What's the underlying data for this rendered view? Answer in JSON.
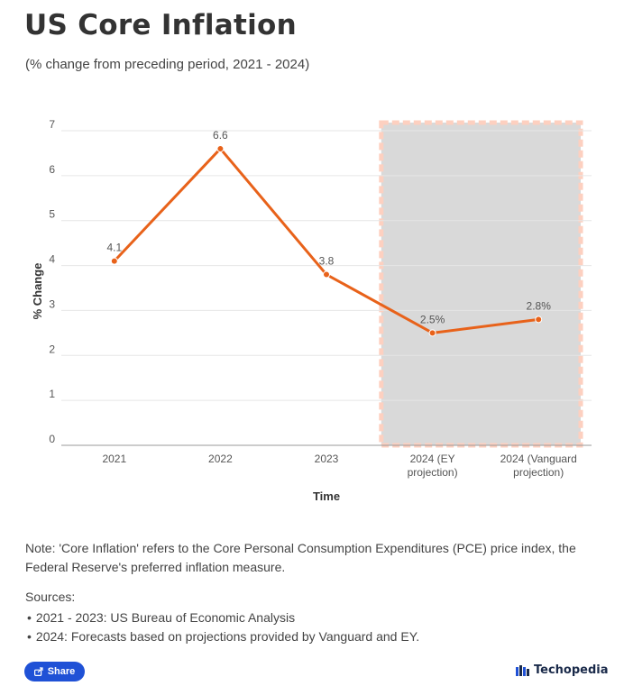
{
  "header": {
    "title": "US Core Inflation",
    "subtitle": "(% change from preceding period, 2021 - 2024)"
  },
  "chart_data": {
    "type": "line",
    "categories": [
      "2021",
      "2022",
      "2023",
      "2024 (EY projection)",
      "2024 (Vanguard projection)"
    ],
    "category_lines": [
      [
        "2021"
      ],
      [
        "2022"
      ],
      [
        "2023"
      ],
      [
        "2024 (EY",
        "projection)"
      ],
      [
        "2024 (Vanguard",
        "projection)"
      ]
    ],
    "series": [
      {
        "name": "% Change",
        "values": [
          4.1,
          6.6,
          3.8,
          2.5,
          2.8
        ],
        "labels": [
          "4.1",
          "6.6",
          "3.8",
          "2.5%",
          "2.8%"
        ]
      }
    ],
    "xlabel": "Time",
    "ylabel": "% Change",
    "ylim": [
      0,
      7
    ],
    "yticks": [
      0,
      1,
      2,
      3,
      4,
      5,
      6,
      7
    ],
    "grid": true,
    "projection_band": {
      "from_category": "2024 (EY projection)",
      "to_category": "2024 (Vanguard projection)"
    },
    "colors": {
      "line": "#e8621a",
      "band_fill": "#d9d9d9",
      "band_border": "#fdd0c0",
      "grid": "#e6e6e6",
      "axis": "#999999"
    }
  },
  "footer": {
    "note": "Note: 'Core Inflation' refers to the Core Personal Consumption Expenditures (PCE) price index, the Federal Reserve's preferred inflation measure.",
    "sources_title": "Sources:",
    "sources": [
      "2021 - 2023: US Bureau of Economic Analysis",
      "2024: Forecasts based on projections provided by Vanguard and EY."
    ],
    "share_label": "Share",
    "share_icon": "share-icon",
    "brand_name": "Techopedia",
    "brand_icon": "techopedia-logo-icon",
    "colors": {
      "share_button": "#1f51d6",
      "brand_text": "#1a2a4a"
    }
  }
}
